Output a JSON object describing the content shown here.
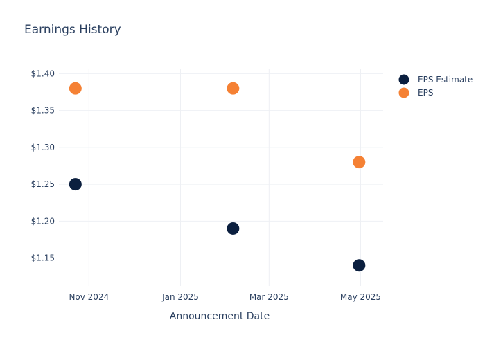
{
  "chart_data": {
    "type": "scatter",
    "title": "Earnings History",
    "xlabel": "Announcement Date",
    "ylabel": "",
    "x_ticks": [
      "Nov 2024",
      "Jan 2025",
      "Mar 2025",
      "May 2025"
    ],
    "x_tick_dates": [
      "2024-11-01",
      "2025-01-01",
      "2025-03-01",
      "2025-05-01"
    ],
    "xlim": [
      "2024-10-12",
      "2025-05-16"
    ],
    "y_ticks": [
      "$1.15",
      "$1.20",
      "$1.25",
      "$1.30",
      "$1.35",
      "$1.40"
    ],
    "y_tick_values": [
      1.15,
      1.2,
      1.25,
      1.3,
      1.35,
      1.4
    ],
    "ylim": [
      1.112,
      1.406
    ],
    "grid": true,
    "legend_position": "right",
    "series": [
      {
        "name": "EPS Estimate",
        "color": "#0b1f3f",
        "points": [
          {
            "x": "2024-10-23",
            "y": 1.25
          },
          {
            "x": "2025-02-05",
            "y": 1.19
          },
          {
            "x": "2025-04-30",
            "y": 1.14
          }
        ]
      },
      {
        "name": "EPS",
        "color": "#f58134",
        "points": [
          {
            "x": "2024-10-23",
            "y": 1.38
          },
          {
            "x": "2025-02-05",
            "y": 1.38
          },
          {
            "x": "2025-04-30",
            "y": 1.28
          }
        ]
      }
    ]
  }
}
